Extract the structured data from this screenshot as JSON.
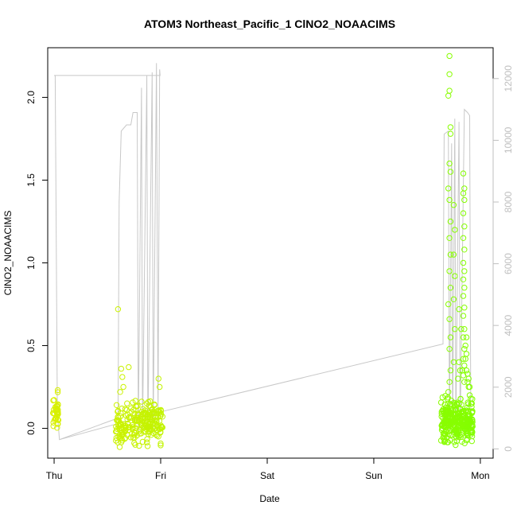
{
  "chart_data": {
    "type": "scatter",
    "title": "ATOM3 Northeast_Pacific_1 ClNO2_NOAACIMS",
    "xlabel": "Date",
    "ylabel": "ClNO2_NOAACIMS",
    "xlim": [
      -0.06,
      4.12
    ],
    "ylim": [
      -0.18,
      2.3
    ],
    "x_ticks": [
      {
        "value": 0,
        "label": "Thu"
      },
      {
        "value": 1,
        "label": "Fri"
      },
      {
        "value": 2,
        "label": "Sat"
      },
      {
        "value": 3,
        "label": "Sun"
      },
      {
        "value": 4,
        "label": "Mon"
      }
    ],
    "y_ticks": [
      {
        "value": 0.0,
        "label": "0.0"
      },
      {
        "value": 0.5,
        "label": "0.5"
      },
      {
        "value": 1.0,
        "label": "1.0"
      },
      {
        "value": 1.5,
        "label": "1.5"
      },
      {
        "value": 2.0,
        "label": "2.0"
      }
    ],
    "y2lim": [
      -300,
      13000
    ],
    "y2_ticks": [
      {
        "value": 0,
        "label": "0"
      },
      {
        "value": 2000,
        "label": "2000"
      },
      {
        "value": 4000,
        "label": "4000"
      },
      {
        "value": 6000,
        "label": "6000"
      },
      {
        "value": 8000,
        "label": "8000"
      },
      {
        "value": 10000,
        "label": "10000"
      },
      {
        "value": 12000,
        "label": "12000"
      }
    ],
    "grid": false,
    "legend": "none",
    "colors": {
      "points_start": "#d9f000",
      "points_end": "#7fff00",
      "altitude_line": "#c8c8c8"
    },
    "altitude_line": [
      [
        0.0,
        12100
      ],
      [
        0.01,
        12100
      ],
      [
        0.03,
        1200
      ],
      [
        0.05,
        300
      ],
      [
        0.6,
        1000
      ],
      [
        0.61,
        8000
      ],
      [
        0.63,
        10300
      ],
      [
        0.68,
        10500
      ],
      [
        0.72,
        10500
      ],
      [
        0.74,
        10900
      ],
      [
        0.78,
        10900
      ],
      [
        0.79,
        500
      ],
      [
        0.82,
        11700
      ],
      [
        0.83,
        600
      ],
      [
        0.87,
        12100
      ],
      [
        0.88,
        500
      ],
      [
        0.92,
        12200
      ],
      [
        0.93,
        600
      ],
      [
        0.96,
        12500
      ],
      [
        0.975,
        1000
      ],
      [
        0.99,
        12300
      ],
      [
        0.995,
        12100
      ],
      [
        0.52,
        12100
      ],
      [
        0.02,
        12100
      ],
      [
        0.0,
        12100
      ],
      [
        0.0,
        12100
      ]
    ],
    "altitude_line2": [
      [
        0.05,
        300
      ],
      [
        1.0,
        1200
      ],
      [
        3.65,
        3400
      ],
      [
        3.66,
        10200
      ],
      [
        3.7,
        10300
      ],
      [
        3.71,
        600
      ],
      [
        3.73,
        9900
      ],
      [
        3.74,
        500
      ],
      [
        3.76,
        10700
      ],
      [
        3.77,
        600
      ],
      [
        3.8,
        10600
      ],
      [
        3.81,
        500
      ],
      [
        3.85,
        11000
      ],
      [
        3.88,
        10900
      ],
      [
        3.9,
        10800
      ],
      [
        3.91,
        1000
      ]
    ],
    "series": [
      {
        "x_range": [
          -0.01,
          0.04
        ],
        "y_center": 0.1,
        "y_spread": 0.1,
        "count": 40
      },
      {
        "x_range": [
          0.58,
          1.02
        ],
        "y_center": 0.03,
        "y_spread": 0.11,
        "count": 230
      },
      {
        "x_range": [
          3.63,
          3.93
        ],
        "y_center": 0.04,
        "y_spread": 0.12,
        "count": 300
      }
    ],
    "outliers": [
      [
        0.6,
        0.72
      ],
      [
        0.63,
        0.36
      ],
      [
        0.64,
        0.31
      ],
      [
        0.65,
        0.25
      ],
      [
        0.7,
        0.37
      ],
      [
        0.62,
        0.22
      ],
      [
        0.98,
        0.3
      ],
      [
        0.99,
        0.25
      ],
      [
        3.71,
        2.25
      ],
      [
        3.71,
        2.14
      ],
      [
        3.71,
        2.04
      ],
      [
        3.7,
        2.01
      ],
      [
        3.72,
        1.82
      ],
      [
        3.72,
        1.78
      ],
      [
        3.71,
        1.6
      ],
      [
        3.72,
        1.55
      ],
      [
        3.7,
        1.45
      ],
      [
        3.71,
        1.38
      ],
      [
        3.72,
        1.25
      ],
      [
        3.71,
        1.15
      ],
      [
        3.72,
        1.05
      ],
      [
        3.71,
        0.95
      ],
      [
        3.72,
        0.85
      ],
      [
        3.7,
        0.75
      ],
      [
        3.71,
        0.66
      ],
      [
        3.72,
        0.55
      ],
      [
        3.71,
        0.48
      ],
      [
        3.72,
        0.35
      ],
      [
        3.71,
        0.28
      ],
      [
        3.7,
        0.22
      ],
      [
        3.75,
        1.35
      ],
      [
        3.76,
        1.2
      ],
      [
        3.75,
        1.05
      ],
      [
        3.76,
        0.92
      ],
      [
        3.75,
        0.78
      ],
      [
        3.76,
        0.6
      ],
      [
        3.75,
        0.4
      ],
      [
        3.84,
        1.54
      ],
      [
        3.85,
        1.45
      ],
      [
        3.84,
        1.42
      ],
      [
        3.85,
        1.38
      ],
      [
        3.84,
        1.3
      ],
      [
        3.85,
        1.22
      ],
      [
        3.84,
        1.15
      ],
      [
        3.85,
        1.08
      ],
      [
        3.84,
        1.0
      ],
      [
        3.85,
        0.95
      ],
      [
        3.84,
        0.9
      ],
      [
        3.85,
        0.85
      ],
      [
        3.84,
        0.8
      ],
      [
        3.85,
        0.73
      ],
      [
        3.84,
        0.68
      ],
      [
        3.85,
        0.6
      ],
      [
        3.84,
        0.55
      ],
      [
        3.85,
        0.48
      ],
      [
        3.84,
        0.42
      ],
      [
        3.85,
        0.38
      ],
      [
        3.84,
        0.32
      ],
      [
        3.85,
        0.28
      ],
      [
        3.86,
        0.5
      ],
      [
        3.86,
        0.42
      ],
      [
        3.87,
        0.55
      ],
      [
        3.87,
        0.45
      ],
      [
        3.87,
        0.35
      ],
      [
        3.88,
        0.33
      ],
      [
        3.88,
        0.28
      ],
      [
        3.89,
        0.3
      ],
      [
        3.89,
        0.25
      ],
      [
        3.9,
        0.25
      ],
      [
        3.9,
        0.2
      ],
      [
        3.91,
        0.18
      ],
      [
        3.92,
        0.15
      ],
      [
        3.8,
        0.72
      ],
      [
        3.8,
        0.4
      ],
      [
        3.81,
        0.35
      ],
      [
        3.79,
        0.3
      ],
      [
        3.82,
        0.6
      ],
      [
        3.83,
        0.35
      ]
    ]
  }
}
